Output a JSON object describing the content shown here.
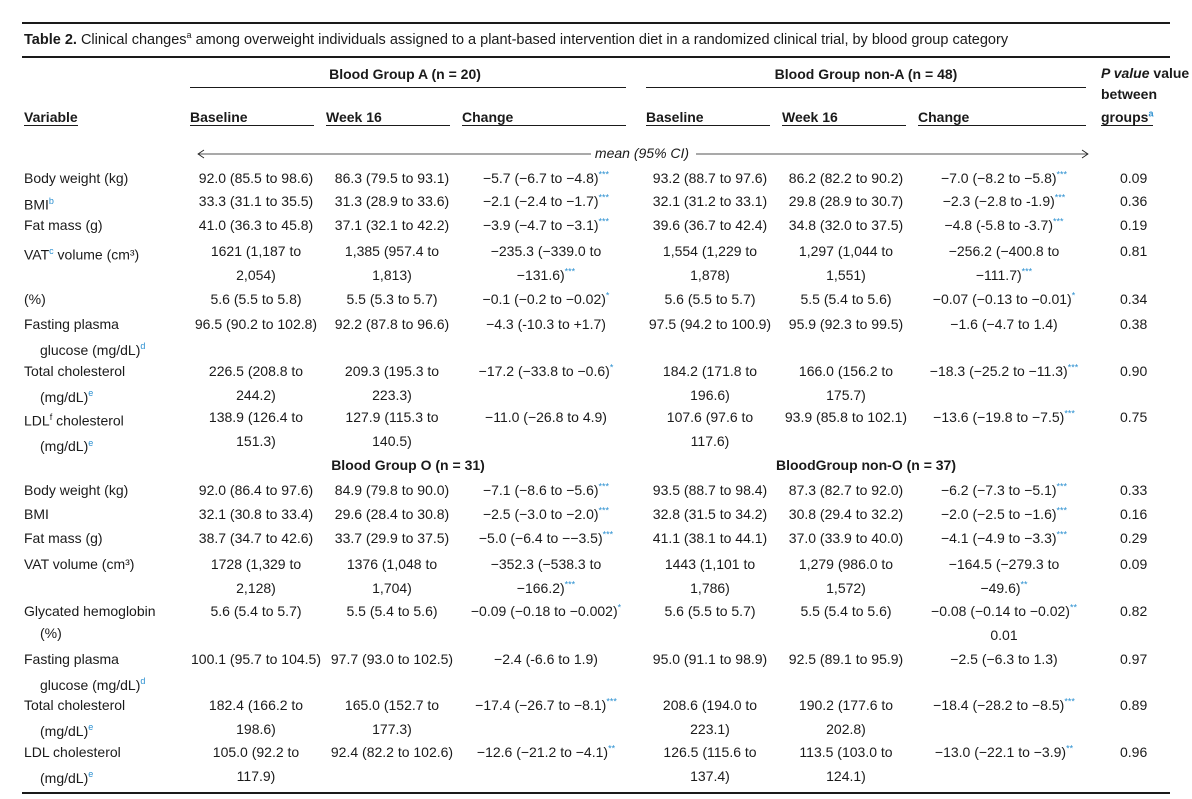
{
  "caption": {
    "label": "Table 2.",
    "text_before": " Clinical changes",
    "sup_a": "a",
    "text_after": " among overweight individuals assigned to a plant-based intervention diet in a randomized clinical trial, by blood group category"
  },
  "headers": {
    "variable": "Variable",
    "group_a": "Blood Group A (n = 20)",
    "group_nona": "Blood Group non-A (n = 48)",
    "pvalue_line1": "P value",
    "pvalue_line2": "between",
    "pvalue_line3": "groups",
    "pvalue_sup": "a",
    "baseline": "Baseline",
    "week16": "Week 16",
    "change": "Change",
    "mean_label": "mean (95% CI)"
  },
  "section2": {
    "group_o": "Blood Group O (n = 31)",
    "group_nono": "BloodGroup non-O (n = 37)"
  },
  "rows": [
    {
      "v1": "Body weight (kg)",
      "sup": "",
      "v2": "",
      "c1": "92.0 (85.5 to 98.6)",
      "c2": "86.3 (79.5 to 93.1)",
      "c3": "−5.7 (−6.7 to −4.8)",
      "s3": "***",
      "c4": "93.2 (88.7 to 97.6)",
      "c5": "86.2 (82.2 to 90.2)",
      "c6": "−7.0 (−8.2 to −5.8)",
      "s6": "***",
      "p": "0.09"
    },
    {
      "v1": "BMI",
      "sup": "b",
      "v2": "",
      "c1": "33.3 (31.1 to 35.5)",
      "c2": "31.3 (28.9 to 33.6)",
      "c3": "−2.1 (−2.4 to −1.7)",
      "s3": "***",
      "c4": "32.1 (31.2 to 33.1)",
      "c5": "29.8 (28.9 to 30.7)",
      "c6": "−2.3 (−2.8 to -1.9)",
      "s6": "***",
      "p": "0.36"
    },
    {
      "v1": "Fat mass (g)",
      "sup": "",
      "v2": "",
      "c1": "41.0 (36.3 to 45.8)",
      "c2": "37.1 (32.1 to 42.2)",
      "c3": "−3.9 (−4.7 to −3.1)",
      "s3": "***",
      "c4": "39.6 (36.7 to 42.4)",
      "c5": "34.8 (32.0 to 37.5)",
      "c6": "−4.8 (-5.8 to -3.7)",
      "s6": "***",
      "p": "0.19"
    }
  ],
  "vat_a": {
    "label_pre": "VAT",
    "label_sup": "c",
    "label_post": " volume (cm³)",
    "c1a": "1621 (1,187 to",
    "c1b": "2,054)",
    "c2a": "1,385 (957.4 to",
    "c2b": "1,813)",
    "c3a": "−235.3 (−339.0 to",
    "c3b": "−131.6)",
    "s3": "***",
    "c4a": "1,554 (1,229 to",
    "c4b": "1,878)",
    "c5a": "1,297 (1,044 to",
    "c5b": "1,551)",
    "c6a": "−256.2 (−400.8 to",
    "c6b": "−111.7)",
    "s6": "***",
    "p": "0.81"
  },
  "pct_row": {
    "label": "(%)",
    "c1": "5.6 (5.5 to 5.8)",
    "c2": "5.5 (5.3 to 5.7)",
    "c3": "−0.1 (−0.2 to −0.02)",
    "s3": "*",
    "c4": "5.6 (5.5 to 5.7)",
    "c5": "5.5 (5.4 to 5.6)",
    "c6": "−0.07 (−0.13 to −0.01)",
    "s6": "*",
    "p": "0.34"
  },
  "glucose_a": {
    "l1": "Fasting plasma",
    "l2": "glucose (mg/dL)",
    "sup": "d",
    "c1": "96.5 (90.2 to 102.8)",
    "c2": "92.2 (87.8 to 96.6)",
    "c3": "−4.3 (-10.3 to +1.7)",
    "c4": "97.5 (94.2 to 100.9)",
    "c5": "95.9 (92.3 to 99.5)",
    "c6": "−1.6 (−4.7 to 1.4)",
    "p": "0.38"
  },
  "chol_a": {
    "l1": "Total cholesterol",
    "l2": "(mg/dL)",
    "sup": "e",
    "c1a": "226.5 (208.8 to",
    "c1b": "244.2)",
    "c2a": "209.3 (195.3 to",
    "c2b": "223.3)",
    "c3": "−17.2 (−33.8 to −0.6)",
    "s3": "*",
    "c4a": "184.2 (171.8 to",
    "c4b": "196.6)",
    "c5a": "166.0 (156.2 to",
    "c5b": "175.7)",
    "c6": "−18.3 (−25.2 to −11.3)",
    "s6": "***",
    "p": "0.90"
  },
  "ldl_a": {
    "l1pre": "LDL",
    "l1sup": "f",
    "l1post": " cholesterol",
    "l2": "(mg/dL)",
    "sup": "e",
    "c1a": "138.9 (126.4 to",
    "c1b": "151.3)",
    "c2a": "127.9 (115.3 to",
    "c2b": "140.5)",
    "c3": "−11.0 (−26.8 to 4.9)",
    "c4a": "107.6 (97.6 to",
    "c4b": "117.6)",
    "c5": "93.9 (85.8 to 102.1)",
    "c6": "−13.6 (−19.8 to −7.5)",
    "s6": "***",
    "p": "0.75"
  },
  "rows_o": [
    {
      "v1": "Body weight (kg)",
      "c1": "92.0 (86.4 to 97.6)",
      "c2": "84.9 (79.8 to 90.0)",
      "c3": "−7.1 (−8.6 to −5.6)",
      "s3": "***",
      "c4": "93.5 (88.7 to 98.4)",
      "c5": "87.3 (82.7 to 92.0)",
      "c6": "−6.2 (−7.3 to −5.1)",
      "s6": "***",
      "p": "0.33"
    },
    {
      "v1": "BMI",
      "c1": "32.1 (30.8 to 33.4)",
      "c2": "29.6 (28.4 to 30.8)",
      "c3": "−2.5 (−3.0 to −2.0)",
      "s3": "***",
      "c4": "32.8 (31.5 to 34.2)",
      "c5": "30.8 (29.4 to 32.2)",
      "c6": "−2.0 (−2.5 to −1.6)",
      "s6": "***",
      "p": "0.16"
    },
    {
      "v1": "Fat mass (g)",
      "c1": "38.7 (34.7 to 42.6)",
      "c2": "33.7 (29.9 to 37.5)",
      "c3": "−5.0 (−6.4 to −−3.5)",
      "s3": "***",
      "c4": "41.1 (38.1 to 44.1)",
      "c5": "37.0 (33.9 to 40.0)",
      "c6": "−4.1 (−4.9 to −3.3)",
      "s6": "***",
      "p": "0.29"
    }
  ],
  "vat_o": {
    "label": "VAT volume (cm³)",
    "c1a": "1728 (1,329 to",
    "c1b": "2,128)",
    "c2a": "1376 (1,048 to",
    "c2b": "1,704)",
    "c3a": "−352.3 (−538.3 to",
    "c3b": "−166.2)",
    "s3": "***",
    "c4a": "1443 (1,101 to",
    "c4b": "1,786)",
    "c5a": "1,279 (986.0 to",
    "c5b": "1,572)",
    "c6a": "−164.5 (−279.3 to",
    "c6b": "−49.6)",
    "s6": "**",
    "p": "0.09"
  },
  "hba1c_o": {
    "l1": "Glycated hemoglobin",
    "l2": "(%)",
    "c1": "5.6 (5.4 to 5.7)",
    "c2": "5.5 (5.4 to 5.6)",
    "c3": "−0.09 (−0.18 to −0.002)",
    "s3": "*",
    "c4": "5.6 (5.5 to 5.7)",
    "c5": "5.5 (5.4 to 5.6)",
    "c6a": "−0.08 (−0.14 to −0.02)",
    "s6": "**",
    "c6b": "0.01",
    "p": "0.82"
  },
  "glucose_o": {
    "l1": "Fasting plasma",
    "l2": "glucose (mg/dL)",
    "sup": "d",
    "c1": "100.1 (95.7 to 104.5)",
    "c2": "97.7 (93.0 to 102.5)",
    "c3": "−2.4 (-6.6 to 1.9)",
    "c4": "95.0 (91.1 to 98.9)",
    "c5": "92.5 (89.1 to 95.9)",
    "c6": "−2.5 (−6.3 to 1.3)",
    "p": "0.97"
  },
  "chol_o": {
    "l1": "Total cholesterol",
    "l2": "(mg/dL)",
    "sup": "e",
    "c1a": "182.4 (166.2 to",
    "c1b": "198.6)",
    "c2a": "165.0 (152.7 to",
    "c2b": "177.3)",
    "c3": "−17.4 (−26.7 to −8.1)",
    "s3": "***",
    "c4a": "208.6 (194.0 to",
    "c4b": "223.1)",
    "c5a": "190.2 (177.6 to",
    "c5b": "202.8)",
    "c6": "−18.4 (−28.2 to −8.5)",
    "s6": "***",
    "p": "0.89"
  },
  "ldl_o": {
    "l1": "LDL cholesterol",
    "l2": "(mg/dL)",
    "sup": "e",
    "c1a": "105.0 (92.2 to",
    "c1b": "117.9)",
    "c2": "92.4 (82.2 to 102.6)",
    "c3": "−12.6 (−21.2 to −4.1)",
    "s3": "**",
    "c4a": "126.5 (115.6 to",
    "c4b": "137.4)",
    "c5a": "113.5 (103.0 to",
    "c5b": "124.1)",
    "c6": "−13.0 (−22.1 to −3.9)",
    "s6": "**",
    "p": "0.96"
  }
}
